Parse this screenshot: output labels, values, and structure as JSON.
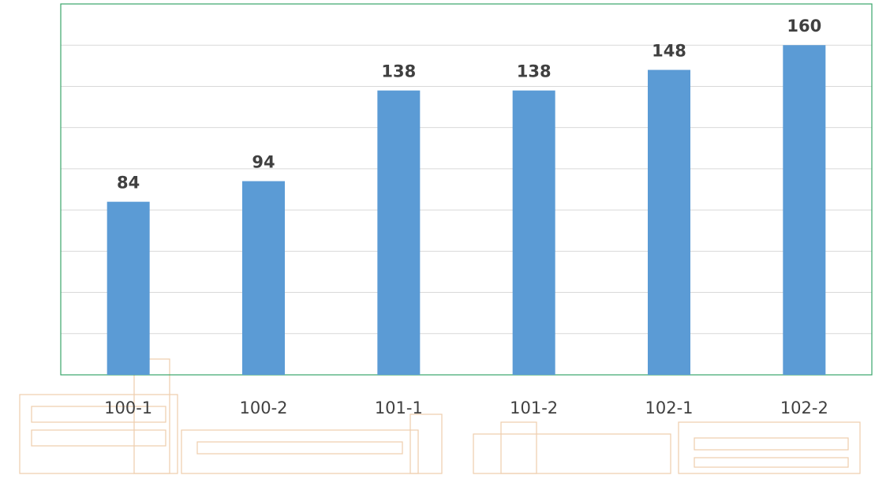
{
  "chart_data": {
    "type": "bar",
    "categories": [
      "100-1",
      "100-2",
      "101-1",
      "101-2",
      "102-1",
      "102-2"
    ],
    "values": [
      84,
      94,
      138,
      138,
      148,
      160
    ],
    "color": "#5b9bd5",
    "ylim": [
      0,
      180
    ],
    "yticks": [
      0,
      20,
      40,
      60,
      80,
      100,
      120,
      140,
      160,
      180
    ],
    "grid": true
  }
}
